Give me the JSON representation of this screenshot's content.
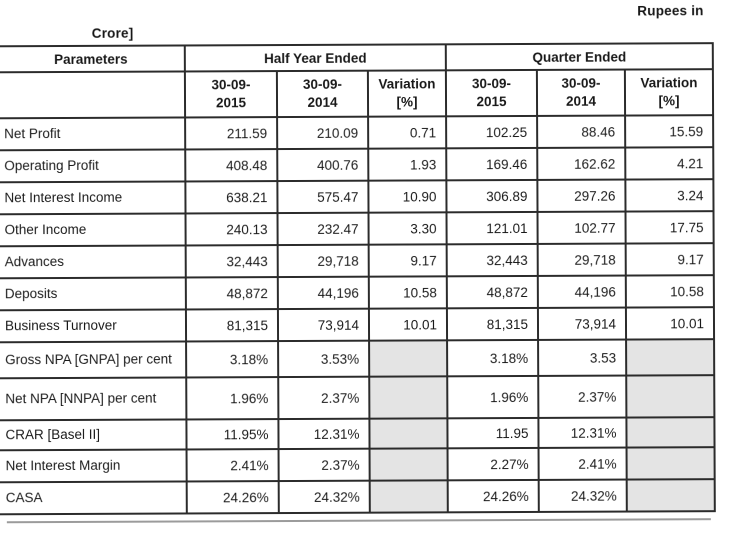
{
  "page": {
    "units_note_line1": "Rupees in",
    "units_note_line2": "Crore]"
  },
  "table": {
    "parameters_header": "Parameters",
    "groups": [
      "Half Year Ended",
      "Quarter Ended"
    ],
    "subcolumns": [
      "30-09-\n2015",
      "30-09-\n2014",
      "Variation\n[%]",
      "30-09-\n2015",
      "30-09-\n2014",
      "Variation\n[%]"
    ],
    "rows": [
      {
        "parameter": "Net Profit",
        "values": [
          "211.59",
          "210.09",
          "0.71",
          "102.25",
          "88.46",
          "15.59"
        ],
        "shaded_variation": false,
        "label_justified": false
      },
      {
        "parameter": "Operating Profit",
        "values": [
          "408.48",
          "400.76",
          "1.93",
          "169.46",
          "162.62",
          "4.21"
        ],
        "shaded_variation": false,
        "label_justified": false
      },
      {
        "parameter": "Net Interest Income",
        "values": [
          "638.21",
          "575.47",
          "10.90",
          "306.89",
          "297.26",
          "3.24"
        ],
        "shaded_variation": false,
        "label_justified": false
      },
      {
        "parameter": "Other Income",
        "values": [
          "240.13",
          "232.47",
          "3.30",
          "121.01",
          "102.77",
          "17.75"
        ],
        "shaded_variation": false,
        "label_justified": false
      },
      {
        "parameter": "Advances",
        "values": [
          "32,443",
          "29,718",
          "9.17",
          "32,443",
          "29,718",
          "9.17"
        ],
        "shaded_variation": false,
        "label_justified": false
      },
      {
        "parameter": "Deposits",
        "values": [
          "48,872",
          "44,196",
          "10.58",
          "48,872",
          "44,196",
          "10.58"
        ],
        "shaded_variation": false,
        "label_justified": false
      },
      {
        "parameter": "Business Turnover",
        "values": [
          "81,315",
          "73,914",
          "10.01",
          "81,315",
          "73,914",
          "10.01"
        ],
        "shaded_variation": false,
        "label_justified": false
      },
      {
        "parameter": "Gross NPA [GNPA] per cent",
        "values": [
          "3.18%",
          "3.53%",
          "",
          "3.18%",
          "3.53",
          ""
        ],
        "shaded_variation": true,
        "label_justified": true
      },
      {
        "parameter": "Net NPA [NNPA] per cent",
        "values": [
          "1.96%",
          "2.37%",
          "",
          "1.96%",
          "2.37%",
          ""
        ],
        "shaded_variation": true,
        "label_justified": true
      },
      {
        "parameter": "CRAR [Basel II]",
        "values": [
          "11.95%",
          "12.31%",
          "",
          "11.95",
          "12.31%",
          ""
        ],
        "shaded_variation": true,
        "label_justified": false
      },
      {
        "parameter": "Net Interest Margin",
        "values": [
          "2.41%",
          "2.37%",
          "",
          "2.27%",
          "2.41%",
          ""
        ],
        "shaded_variation": true,
        "label_justified": false
      },
      {
        "parameter": "CASA",
        "values": [
          "24.26%",
          "24.32%",
          "",
          "24.26%",
          "24.32%",
          ""
        ],
        "shaded_variation": true,
        "label_justified": false
      }
    ]
  },
  "colors": {
    "text": "#1b1b1b",
    "border": "#2e2e2e",
    "shaded_cell": "#e0e0e0"
  }
}
